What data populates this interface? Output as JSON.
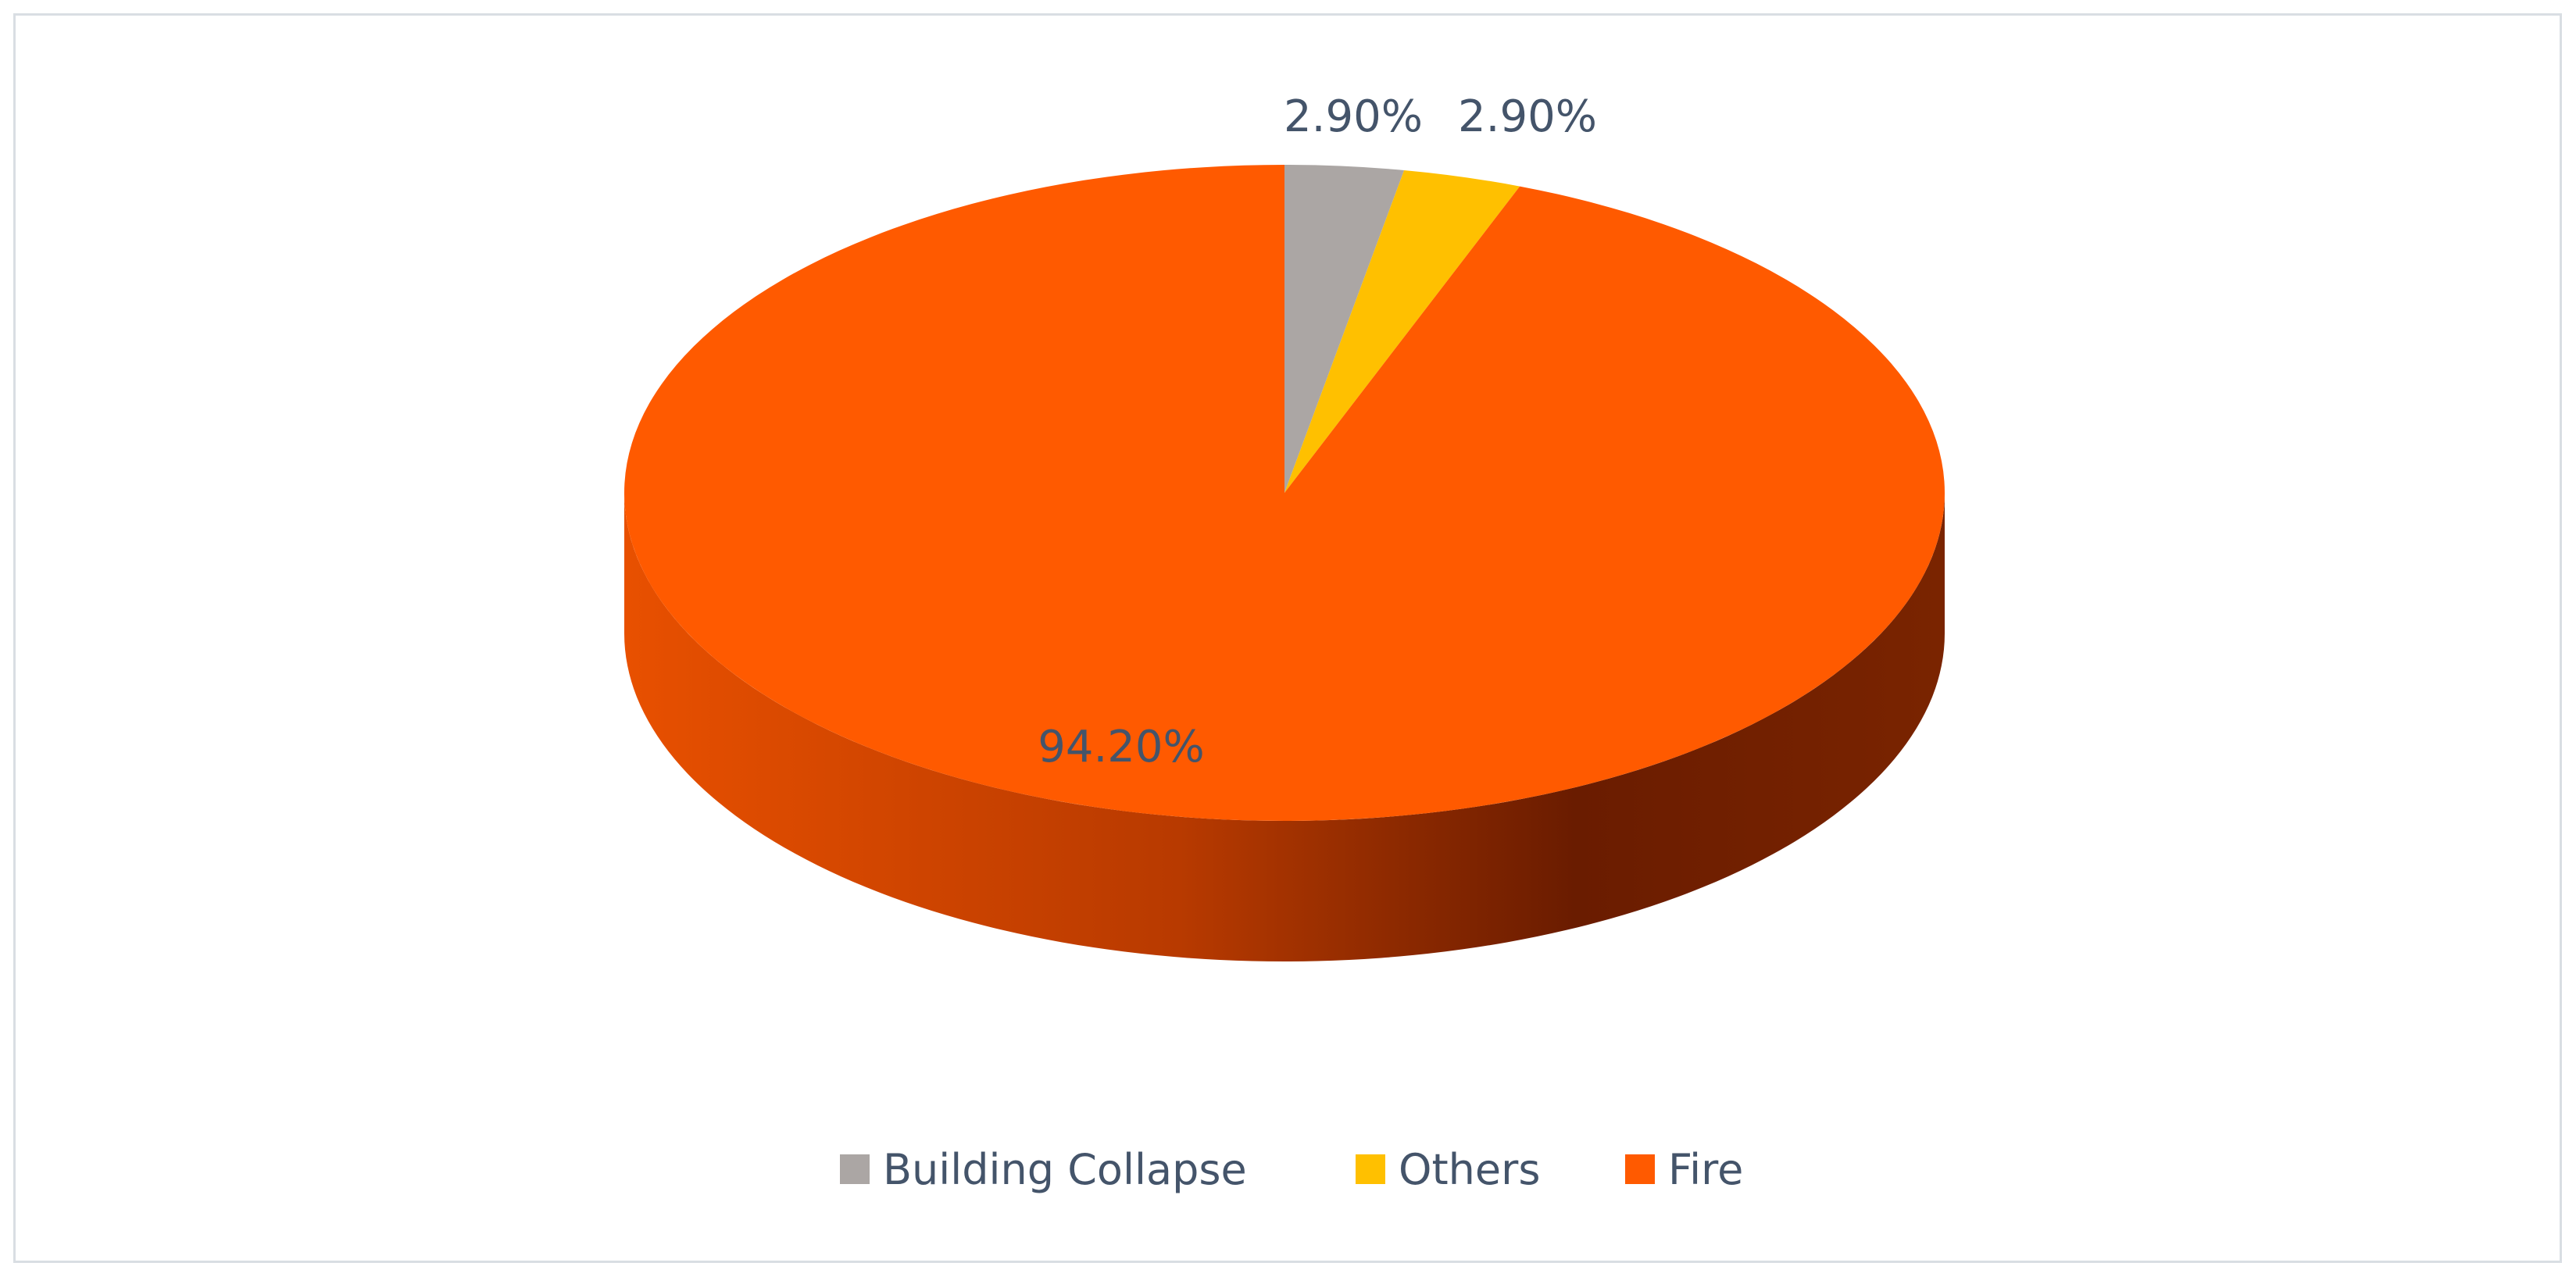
{
  "chart_data": {
    "type": "pie",
    "style": "3d",
    "start_angle": "top, clockwise",
    "legend_position": "bottom",
    "slices": [
      {
        "label": "Building Collapse",
        "value": 2.9,
        "data_label": "2.90%",
        "color": "#aba6a4"
      },
      {
        "label": "Others",
        "value": 2.9,
        "data_label": "2.90%",
        "color": "#ffc000"
      },
      {
        "label": "Fire",
        "value": 94.2,
        "data_label": "94.20%",
        "color": "#ff5a00"
      }
    ],
    "side_colors": [
      "#e85000",
      "#b83a00",
      "#6a1c00",
      "#7a2400"
    ],
    "label_color": "#44546a"
  }
}
